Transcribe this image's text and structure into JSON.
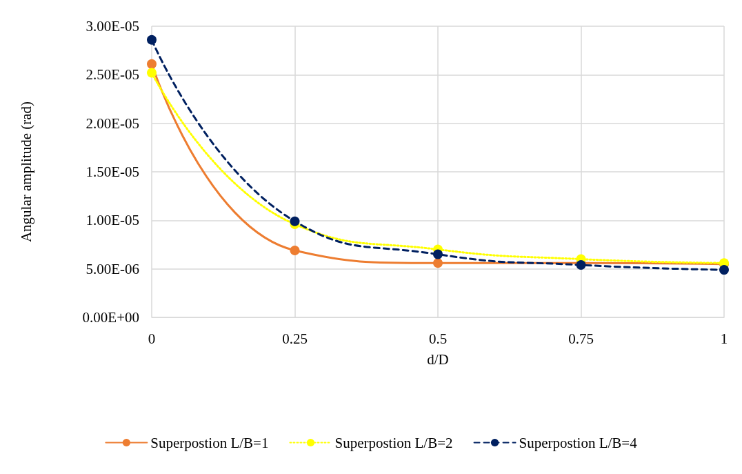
{
  "chart_data": {
    "type": "line",
    "xlabel": "d/D",
    "ylabel": "Angular amplitude (rad)",
    "x": [
      0,
      0.25,
      0.5,
      0.75,
      1
    ],
    "xlim": [
      0,
      1
    ],
    "xticks": [
      0,
      0.25,
      0.5,
      0.75,
      1
    ],
    "ylim": [
      0,
      3e-05
    ],
    "yticks": [
      {
        "value": 0,
        "label": "0.00E+00"
      },
      {
        "value": 5e-06,
        "label": "5.00E-06"
      },
      {
        "value": 1e-05,
        "label": "1.00E-05"
      },
      {
        "value": 1.5e-05,
        "label": "1.50E-05"
      },
      {
        "value": 2e-05,
        "label": "2.00E-05"
      },
      {
        "value": 2.5e-05,
        "label": "2.50E-05"
      },
      {
        "value": 3e-05,
        "label": "3.00E-05"
      }
    ],
    "grid": true,
    "legend": "bottom",
    "marker": "circle",
    "series": [
      {
        "name": "Superpostion L/B=1",
        "color": "#ed7d31",
        "line_style": "solid",
        "values": [
          2.61e-05,
          6.9e-06,
          5.6e-06,
          5.6e-06,
          5.5e-06
        ]
      },
      {
        "name": "Superpostion L/B=2",
        "color": "#ffff00",
        "line_style": "dotted",
        "values": [
          2.52e-05,
          9.6e-06,
          7e-06,
          6e-06,
          5.6e-06
        ]
      },
      {
        "name": "Superpostion L/B=4",
        "color": "#002060",
        "line_style": "dashed",
        "values": [
          2.86e-05,
          9.9e-06,
          6.5e-06,
          5.4e-06,
          4.9e-06
        ]
      }
    ]
  }
}
